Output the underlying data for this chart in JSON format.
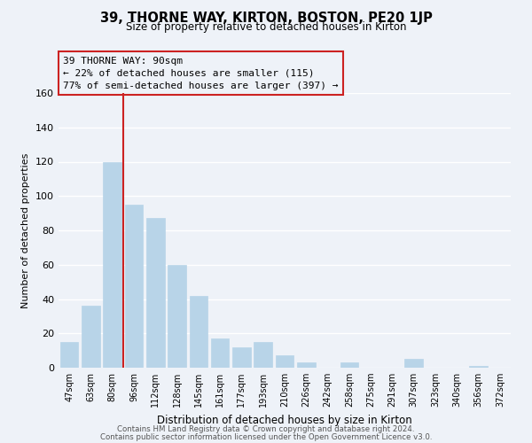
{
  "title": "39, THORNE WAY, KIRTON, BOSTON, PE20 1JP",
  "subtitle": "Size of property relative to detached houses in Kirton",
  "xlabel": "Distribution of detached houses by size in Kirton",
  "ylabel": "Number of detached properties",
  "bar_color": "#b8d4e8",
  "highlight_color": "#cc2222",
  "background_color": "#eef2f8",
  "categories": [
    "47sqm",
    "63sqm",
    "80sqm",
    "96sqm",
    "112sqm",
    "128sqm",
    "145sqm",
    "161sqm",
    "177sqm",
    "193sqm",
    "210sqm",
    "226sqm",
    "242sqm",
    "258sqm",
    "275sqm",
    "291sqm",
    "307sqm",
    "323sqm",
    "340sqm",
    "356sqm",
    "372sqm"
  ],
  "values": [
    15,
    36,
    120,
    95,
    87,
    60,
    42,
    17,
    12,
    15,
    7,
    3,
    0,
    3,
    0,
    0,
    5,
    0,
    0,
    1,
    0
  ],
  "highlight_index": 2,
  "annotation_lines": [
    "39 THORNE WAY: 90sqm",
    "← 22% of detached houses are smaller (115)",
    "77% of semi-detached houses are larger (397) →"
  ],
  "ylim": [
    0,
    160
  ],
  "yticks": [
    0,
    20,
    40,
    60,
    80,
    100,
    120,
    140,
    160
  ],
  "footer1": "Contains HM Land Registry data © Crown copyright and database right 2024.",
  "footer2": "Contains public sector information licensed under the Open Government Licence v3.0."
}
